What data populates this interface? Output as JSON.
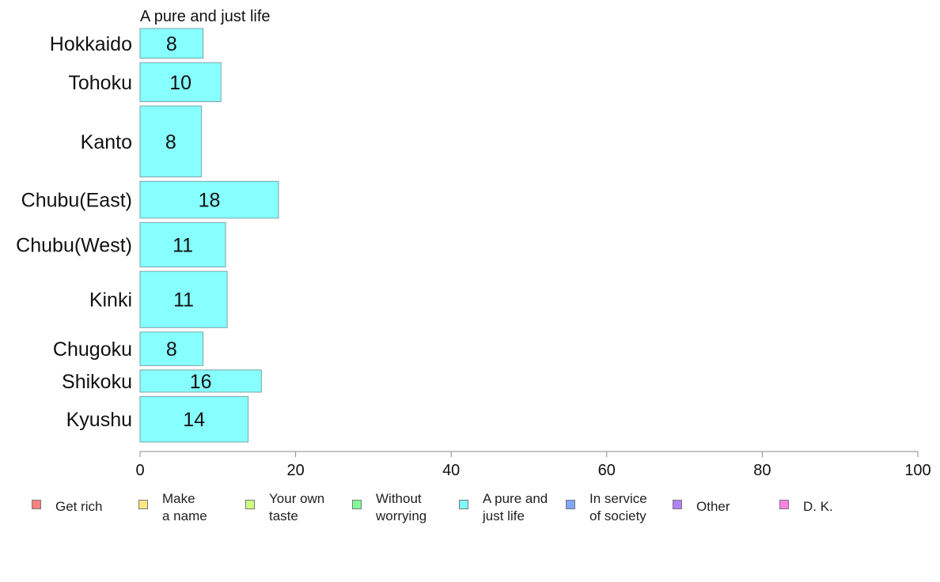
{
  "chart_data": {
    "type": "bar",
    "orientation": "horizontal",
    "title": "A pure and just life",
    "categories": [
      "Hokkaido",
      "Tohoku",
      "Kanto",
      "Chubu(East)",
      "Chubu(West)",
      "Kinki",
      "Chugoku",
      "Shikoku",
      "Kyushu"
    ],
    "values": [
      8,
      10,
      8,
      18,
      11,
      11,
      8,
      16,
      14
    ],
    "bar_value_precise": [
      8.1,
      10.4,
      7.9,
      17.8,
      11.0,
      11.2,
      8.1,
      15.6,
      13.9
    ],
    "relative_bar_thickness": [
      0.55,
      0.72,
      1.31,
      0.68,
      0.82,
      1.04,
      0.62,
      0.41,
      0.84
    ],
    "xlim": [
      0,
      100
    ],
    "xticks": [
      "0",
      "20",
      "40",
      "60",
      "80",
      "100"
    ],
    "bar_color": "#87ffff",
    "bar_stroke": "#7aa6a6",
    "grid": false,
    "legend_position": "bottom",
    "legend": [
      {
        "label": "Get rich",
        "color": "#ff8080"
      },
      {
        "label": "Make\na name",
        "color": "#ffe680"
      },
      {
        "label": "Your own\ntaste",
        "color": "#ccff80"
      },
      {
        "label": "Without\nworrying",
        "color": "#80ff99"
      },
      {
        "label": "A pure and\njust life",
        "color": "#80ffff"
      },
      {
        "label": "In service\nof society",
        "color": "#80a6ff"
      },
      {
        "label": "Other",
        "color": "#b380ff"
      },
      {
        "label": "D. K.",
        "color": "#ff80e6"
      }
    ]
  }
}
